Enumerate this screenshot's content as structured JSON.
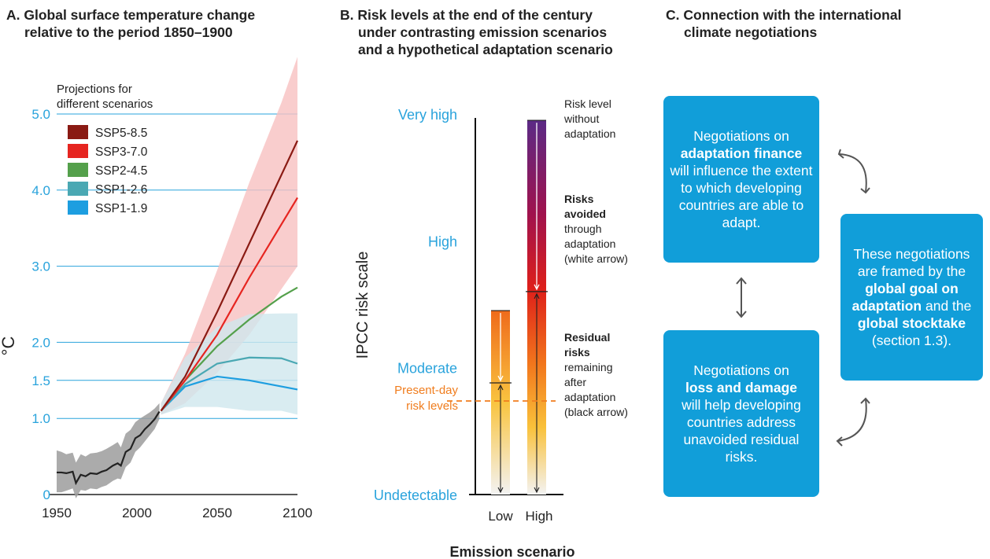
{
  "panel_a": {
    "letter": "A.",
    "title_line1": "Global surface temperature change",
    "title_line2": "relative to the period 1850–1900",
    "legend_title_line1": "Projections for",
    "legend_title_line2": "different scenarios",
    "ylabel": "°C"
  },
  "panel_b": {
    "letter": "B.",
    "title_line1": "Risk levels at the end of the century",
    "title_line2": "under contrasting emission scenarios",
    "title_line3": "and a hypothetical adaptation scenario",
    "ylabel": "IPCC risk scale",
    "xlabel": "Emission scenario",
    "present_day_line1": "Present-day",
    "present_day_line2": "risk levels",
    "note1": [
      "Risk level",
      "without",
      "adaptation"
    ],
    "note2_bold": [
      "Risks",
      "avoided"
    ],
    "note2": [
      "through",
      "adaptation",
      "(white arrow)"
    ],
    "note3_bold": [
      "Residual",
      "risks"
    ],
    "note3": [
      "remaining",
      "after",
      "adaptation",
      "(black arrow)"
    ]
  },
  "panel_c": {
    "letter": "C.",
    "title_line1": "Connection with the international",
    "title_line2": "climate negotiations",
    "box1_pre": "Negotiations on",
    "box1_bold": "adaptation finance",
    "box1_post": "will influence the extent to which developing countries are able to adapt.",
    "box2_pre": "Negotiations on",
    "box2_bold": "loss and damage",
    "box2_post": "will help developing countries address unavoided residual risks.",
    "box3_pre": "These negotiations are framed by the",
    "box3_bold1": "global goal on adaptation",
    "box3_mid": "and the",
    "box3_bold2": "global stocktake",
    "box3_post": "(section 1.3)."
  },
  "colors": {
    "axis_blue": "#29a3dc",
    "box_blue": "#119ed9",
    "present_day": "#f07d1e",
    "historical": "#222222"
  },
  "chart_data": [
    {
      "type": "line",
      "title": "Global surface temperature change relative to the period 1850–1900",
      "ylabel": "°C",
      "xlim": [
        1950,
        2100
      ],
      "ylim": [
        0,
        5
      ],
      "x_ticks": [
        1950,
        2000,
        2050,
        2100
      ],
      "y_ticks": [
        0,
        1.0,
        1.5,
        2.0,
        3.0,
        4.0,
        5.0
      ],
      "y_tick_labels": [
        "0",
        "1.0",
        "1.5",
        "2.0",
        "3.0",
        "4.0",
        "5.0"
      ],
      "grid": true,
      "legend_position": "top-left",
      "historical": {
        "x": [
          1950,
          1953,
          1956,
          1960,
          1962,
          1965,
          1968,
          1971,
          1975,
          1978,
          1981,
          1985,
          1988,
          1990,
          1993,
          1996,
          1999,
          2002,
          2005,
          2008,
          2011,
          2014
        ],
        "y": [
          0.29,
          0.29,
          0.28,
          0.3,
          0.15,
          0.26,
          0.24,
          0.28,
          0.27,
          0.3,
          0.32,
          0.38,
          0.41,
          0.38,
          0.56,
          0.6,
          0.74,
          0.78,
          0.86,
          0.92,
          0.99,
          1.09
        ],
        "band_low": [
          0.03,
          0.03,
          0.05,
          0.08,
          -0.05,
          0.06,
          0.05,
          0.08,
          0.07,
          0.1,
          0.12,
          0.18,
          0.21,
          0.2,
          0.36,
          0.42,
          0.56,
          0.62,
          0.7,
          0.78,
          0.86,
          0.99
        ],
        "band_high": [
          0.58,
          0.56,
          0.53,
          0.55,
          0.42,
          0.53,
          0.5,
          0.54,
          0.55,
          0.57,
          0.6,
          0.65,
          0.69,
          0.62,
          0.8,
          0.85,
          0.95,
          1.0,
          1.04,
          1.08,
          1.13,
          1.2
        ]
      },
      "series": [
        {
          "name": "SSP5-8.5",
          "color": "#8a1a13",
          "x": [
            2015,
            2030,
            2050,
            2070,
            2090,
            2100
          ],
          "y": [
            1.1,
            1.55,
            2.4,
            3.3,
            4.2,
            4.65
          ]
        },
        {
          "name": "SSP3-7.0",
          "color": "#e62520",
          "x": [
            2015,
            2030,
            2050,
            2070,
            2090,
            2100
          ],
          "y": [
            1.1,
            1.5,
            2.1,
            2.85,
            3.55,
            3.9
          ]
        },
        {
          "name": "SSP2-4.5",
          "color": "#54a04b",
          "x": [
            2015,
            2030,
            2050,
            2070,
            2090,
            2100
          ],
          "y": [
            1.1,
            1.5,
            1.95,
            2.3,
            2.6,
            2.72
          ]
        },
        {
          "name": "SSP1-2.6",
          "color": "#4aa8b3",
          "x": [
            2015,
            2030,
            2050,
            2070,
            2090,
            2100
          ],
          "y": [
            1.1,
            1.45,
            1.72,
            1.8,
            1.79,
            1.72
          ]
        },
        {
          "name": "SSP1-1.9",
          "color": "#1d9ee0",
          "x": [
            2015,
            2030,
            2050,
            2070,
            2090,
            2100
          ],
          "y": [
            1.1,
            1.42,
            1.55,
            1.5,
            1.42,
            1.38
          ]
        }
      ],
      "bands": [
        {
          "color": "#f7c1c0",
          "x": [
            2015,
            2030,
            2050,
            2070,
            2090,
            2100
          ],
          "low": [
            1.05,
            1.2,
            1.6,
            2.1,
            2.7,
            3.0
          ],
          "high": [
            1.2,
            1.85,
            2.95,
            4.1,
            5.15,
            5.75
          ]
        },
        {
          "color": "#cfe7ee",
          "x": [
            2015,
            2030,
            2050,
            2070,
            2090,
            2100
          ],
          "low": [
            1.05,
            1.15,
            1.15,
            1.1,
            1.1,
            1.05
          ],
          "high": [
            1.2,
            1.8,
            2.2,
            2.37,
            2.38,
            2.38
          ]
        }
      ]
    },
    {
      "type": "bar",
      "title": "Risk levels at the end of the century under contrasting emission scenarios and a hypothetical adaptation scenario",
      "xlabel": "Emission scenario",
      "ylabel": "IPCC risk scale",
      "categories": [
        "Low",
        "High"
      ],
      "y_scale_labels": [
        "Undetectable",
        "Moderate",
        "High",
        "Very high"
      ],
      "ylim": [
        0,
        3
      ],
      "present_day_level": 0.75,
      "series": [
        {
          "name": "Risk level without adaptation",
          "values": [
            1.45,
            2.95
          ]
        },
        {
          "name": "Residual risks",
          "values": [
            0.88,
            1.6
          ]
        }
      ]
    }
  ]
}
